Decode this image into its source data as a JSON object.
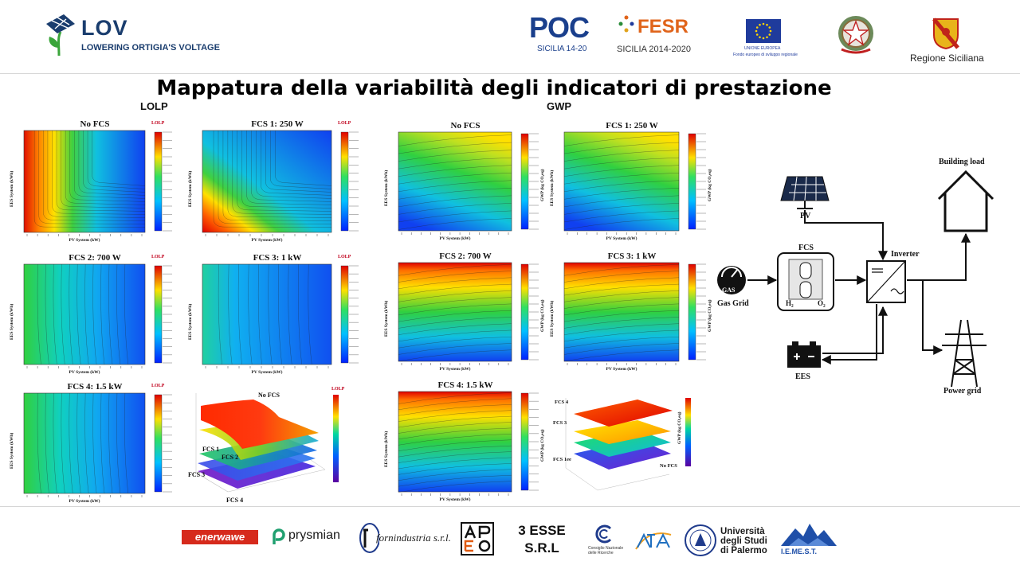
{
  "header": {
    "lov_title": "LOV",
    "lov_subtitle": "LOWERING ORTIGIA'S VOLTAGE",
    "poc_label": "POC",
    "poc_sub": "SICILIA 14-20",
    "fesr_label": "FESR",
    "fesr_sub": "SICILIA 2014-2020",
    "eu_line1": "UNIONE EUROPEA",
    "eu_line2": "Fondo europeo di sviluppo regionale",
    "regione_label": "Regione Siciliana"
  },
  "title": "Mappatura della variabilità degli indicatori di prestazione",
  "panels": {
    "left": "LOLP",
    "right": "GWP"
  },
  "lolp_plots": [
    {
      "title": "No FCS",
      "cb_title": "LOLP",
      "xlabel": "PV System (kW)",
      "ylabel": "EES System (kWh)"
    },
    {
      "title": "FCS 1: 250 W",
      "cb_title": "LOLP",
      "xlabel": "PV System (kW)",
      "ylabel": "EES System (kWh)"
    },
    {
      "title": "FCS 2: 700 W",
      "cb_title": "LOLP",
      "xlabel": "PV System (kW)",
      "ylabel": "EES System (kWh)"
    },
    {
      "title": "FCS 3: 1 kW",
      "cb_title": "LOLP",
      "xlabel": "PV System (kW)",
      "ylabel": "EES System (kWh)"
    },
    {
      "title": "FCS 4: 1.5 kW",
      "cb_title": "LOLP",
      "xlabel": "PV System (kW)",
      "ylabel": "EES System (kWh)"
    }
  ],
  "lolp_3d": {
    "cb_title": "LOLP",
    "labels": [
      "No FCS",
      "FCS 1",
      "FCS 2",
      "FCS 3",
      "FCS 4"
    ]
  },
  "gwp_plots": [
    {
      "title": "No FCS",
      "cblabel": "GWP (kg CO₂eq)",
      "xlabel": "PV System (kW)",
      "ylabel": "EES System (kWh)"
    },
    {
      "title": "FCS 1: 250 W",
      "cblabel": "GWP (kg CO₂eq)",
      "xlabel": "PV System (kW)",
      "ylabel": "EES System (kWh)"
    },
    {
      "title": "FCS 2: 700 W",
      "cblabel": "GWP (kg CO₂eq)",
      "xlabel": "PV System (kW)",
      "ylabel": "EES System (kWh)"
    },
    {
      "title": "FCS 3: 1 kW",
      "cblabel": "GWP (kg CO₂eq)",
      "xlabel": "PV System (kW)",
      "ylabel": "EES System (kWh)"
    },
    {
      "title": "FCS 4: 1.5 kW",
      "cblabel": "GWP (kg CO₂eq)",
      "xlabel": "PV System (kW)",
      "ylabel": "EES System (kWh)"
    }
  ],
  "gwp_3d": {
    "cblabel": "GWP (kg CO₂eq)",
    "labels": [
      "FCS 4",
      "FCS 3",
      "FCS 1ee",
      "No FCS"
    ]
  },
  "schematic": {
    "pv": "PV",
    "fcs": "FCS",
    "h2": "H₂",
    "o2": "O₂",
    "gas_icon": "GAS",
    "gas_grid": "Gas Grid",
    "inverter": "Inverter",
    "building": "Building load",
    "ees": "EES",
    "power_grid": "Power grid"
  },
  "footer": {
    "enerwawe": "enerwawe",
    "prysmian": "prysmian",
    "fornindustria": "fornindustria s.r.l.",
    "tre_esse_1": "3 ESSE",
    "tre_esse_2": "S.R.L",
    "cnr": "Consiglio Nazionale delle Ricerche",
    "unipa_1": "Università",
    "unipa_2": "degli Studi",
    "unipa_3": "di Palermo",
    "iemest": "I.E.ME.S.T."
  },
  "colors": {
    "brand_blue": "#1a3d6e",
    "lov_green": "#3aa53a",
    "poc_blue": "#1a3f8c"
  }
}
